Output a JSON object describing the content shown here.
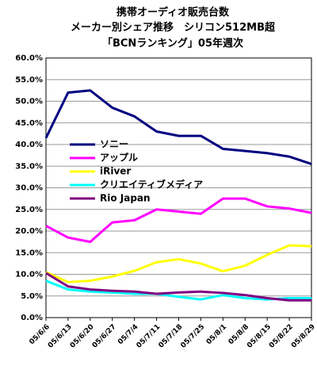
{
  "chart_data": {
    "type": "line",
    "title": [
      "携帯オーディオ販売台数",
      "メーカー別シェア推移　シリコン512MB超",
      "「BCNランキング」05年週次"
    ],
    "categories": [
      "05/6/6",
      "05/6/13",
      "05/6/20",
      "05/6/27",
      "05/7/4",
      "05/7/11",
      "05/7/18",
      "05/7/25",
      "05/8/1",
      "05/8/8",
      "05/8/15",
      "05/8/22",
      "05/8/29"
    ],
    "series": [
      {
        "name": "ソニー",
        "color": "#000080",
        "values": [
          41.5,
          52,
          52.5,
          48.5,
          46.5,
          43,
          42,
          42,
          39,
          38.5,
          38,
          37.2,
          35.5
        ]
      },
      {
        "name": "アップル",
        "color": "#ff00ff",
        "values": [
          21.2,
          18.5,
          17.5,
          22,
          22.5,
          25,
          24.5,
          24,
          27.5,
          27.5,
          25.7,
          25.2,
          24.2
        ]
      },
      {
        "name": "iRiver",
        "color": "#ffff00",
        "values": [
          10.5,
          8.2,
          8.5,
          9.5,
          10.8,
          12.8,
          13.5,
          12.5,
          10.7,
          12,
          14.5,
          16.7,
          16.5
        ]
      },
      {
        "name": "クリエイティブメディア",
        "color": "#00ffff",
        "values": [
          8.5,
          6.5,
          6,
          5.8,
          5.5,
          5.5,
          4.8,
          4.2,
          5.2,
          4.5,
          4.2,
          4.5,
          4.5
        ]
      },
      {
        "name": "Rio Japan",
        "color": "#800080",
        "values": [
          10.3,
          7.2,
          6.5,
          6.2,
          6,
          5.5,
          5.8,
          6,
          5.7,
          5.2,
          4.5,
          4,
          4
        ]
      }
    ],
    "ylim": [
      0,
      60
    ],
    "yticks": [
      {
        "value": 0,
        "label": "0.0%"
      },
      {
        "value": 5,
        "label": "5.0%"
      },
      {
        "value": 10,
        "label": "10.0%"
      },
      {
        "value": 15,
        "label": "15.0%"
      },
      {
        "value": 20,
        "label": "20.0%"
      },
      {
        "value": 25,
        "label": "25.0%"
      },
      {
        "value": 30,
        "label": "30.0%"
      },
      {
        "value": 35,
        "label": "35.0%"
      },
      {
        "value": 40,
        "label": "40.0%"
      },
      {
        "value": 45,
        "label": "45.0%"
      },
      {
        "value": 50,
        "label": "50.0%"
      },
      {
        "value": 55,
        "label": "55.0%"
      },
      {
        "value": 60,
        "label": "60.0%"
      }
    ],
    "grid": true
  }
}
